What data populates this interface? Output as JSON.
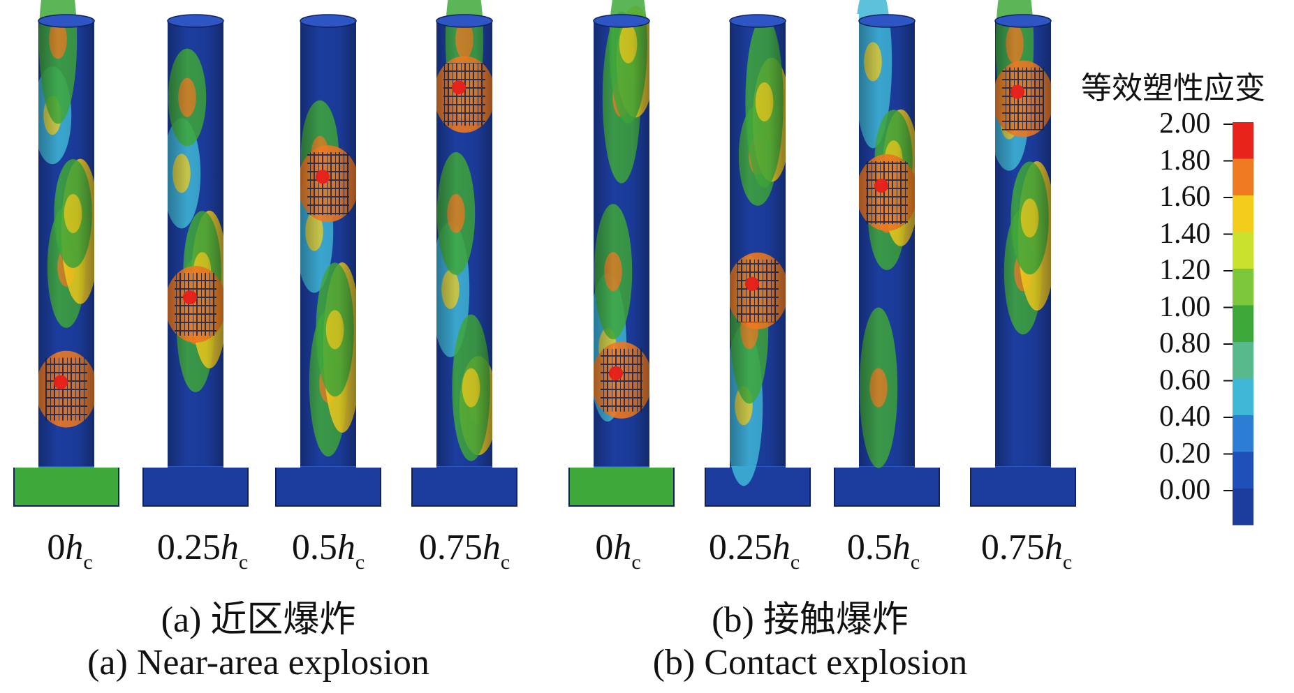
{
  "columns": [
    {
      "prefix": "0",
      "h": "h",
      "sub": "c"
    },
    {
      "prefix": "0.25",
      "h": "h",
      "sub": "c"
    },
    {
      "prefix": "0.5",
      "h": "h",
      "sub": "c"
    },
    {
      "prefix": "0.75",
      "h": "h",
      "sub": "c"
    },
    {
      "prefix": "0",
      "h": "h",
      "sub": "c"
    },
    {
      "prefix": "0.25",
      "h": "h",
      "sub": "c"
    },
    {
      "prefix": "0.5",
      "h": "h",
      "sub": "c"
    },
    {
      "prefix": "0.75",
      "h": "h",
      "sub": "c"
    }
  ],
  "captions": {
    "a_cn": "(a) 近区爆炸",
    "b_cn": "(b) 接触爆炸",
    "a_en": "(a) Near-area explosion",
    "b_en": "(b) Contact explosion"
  },
  "legend": {
    "title": "等效塑性应变",
    "ticks": [
      "2.00",
      "1.80",
      "1.60",
      "1.40",
      "1.20",
      "1.00",
      "0.80",
      "0.60",
      "0.40",
      "0.20",
      "0.00"
    ],
    "colors": [
      "#e8231c",
      "#f07a22",
      "#f4cc1c",
      "#c9e22e",
      "#7cc83a",
      "#3fa83a",
      "#58b98c",
      "#3fb7d6",
      "#2b7ed3",
      "#1f4fb8",
      "#1c3d9e"
    ]
  },
  "colors": {
    "low": "#1c3d9e",
    "cyan": "#3fb7d6",
    "green": "#3fa83a",
    "yellow": "#f4cc1c",
    "orange": "#f07a22",
    "red": "#e8231c"
  }
}
